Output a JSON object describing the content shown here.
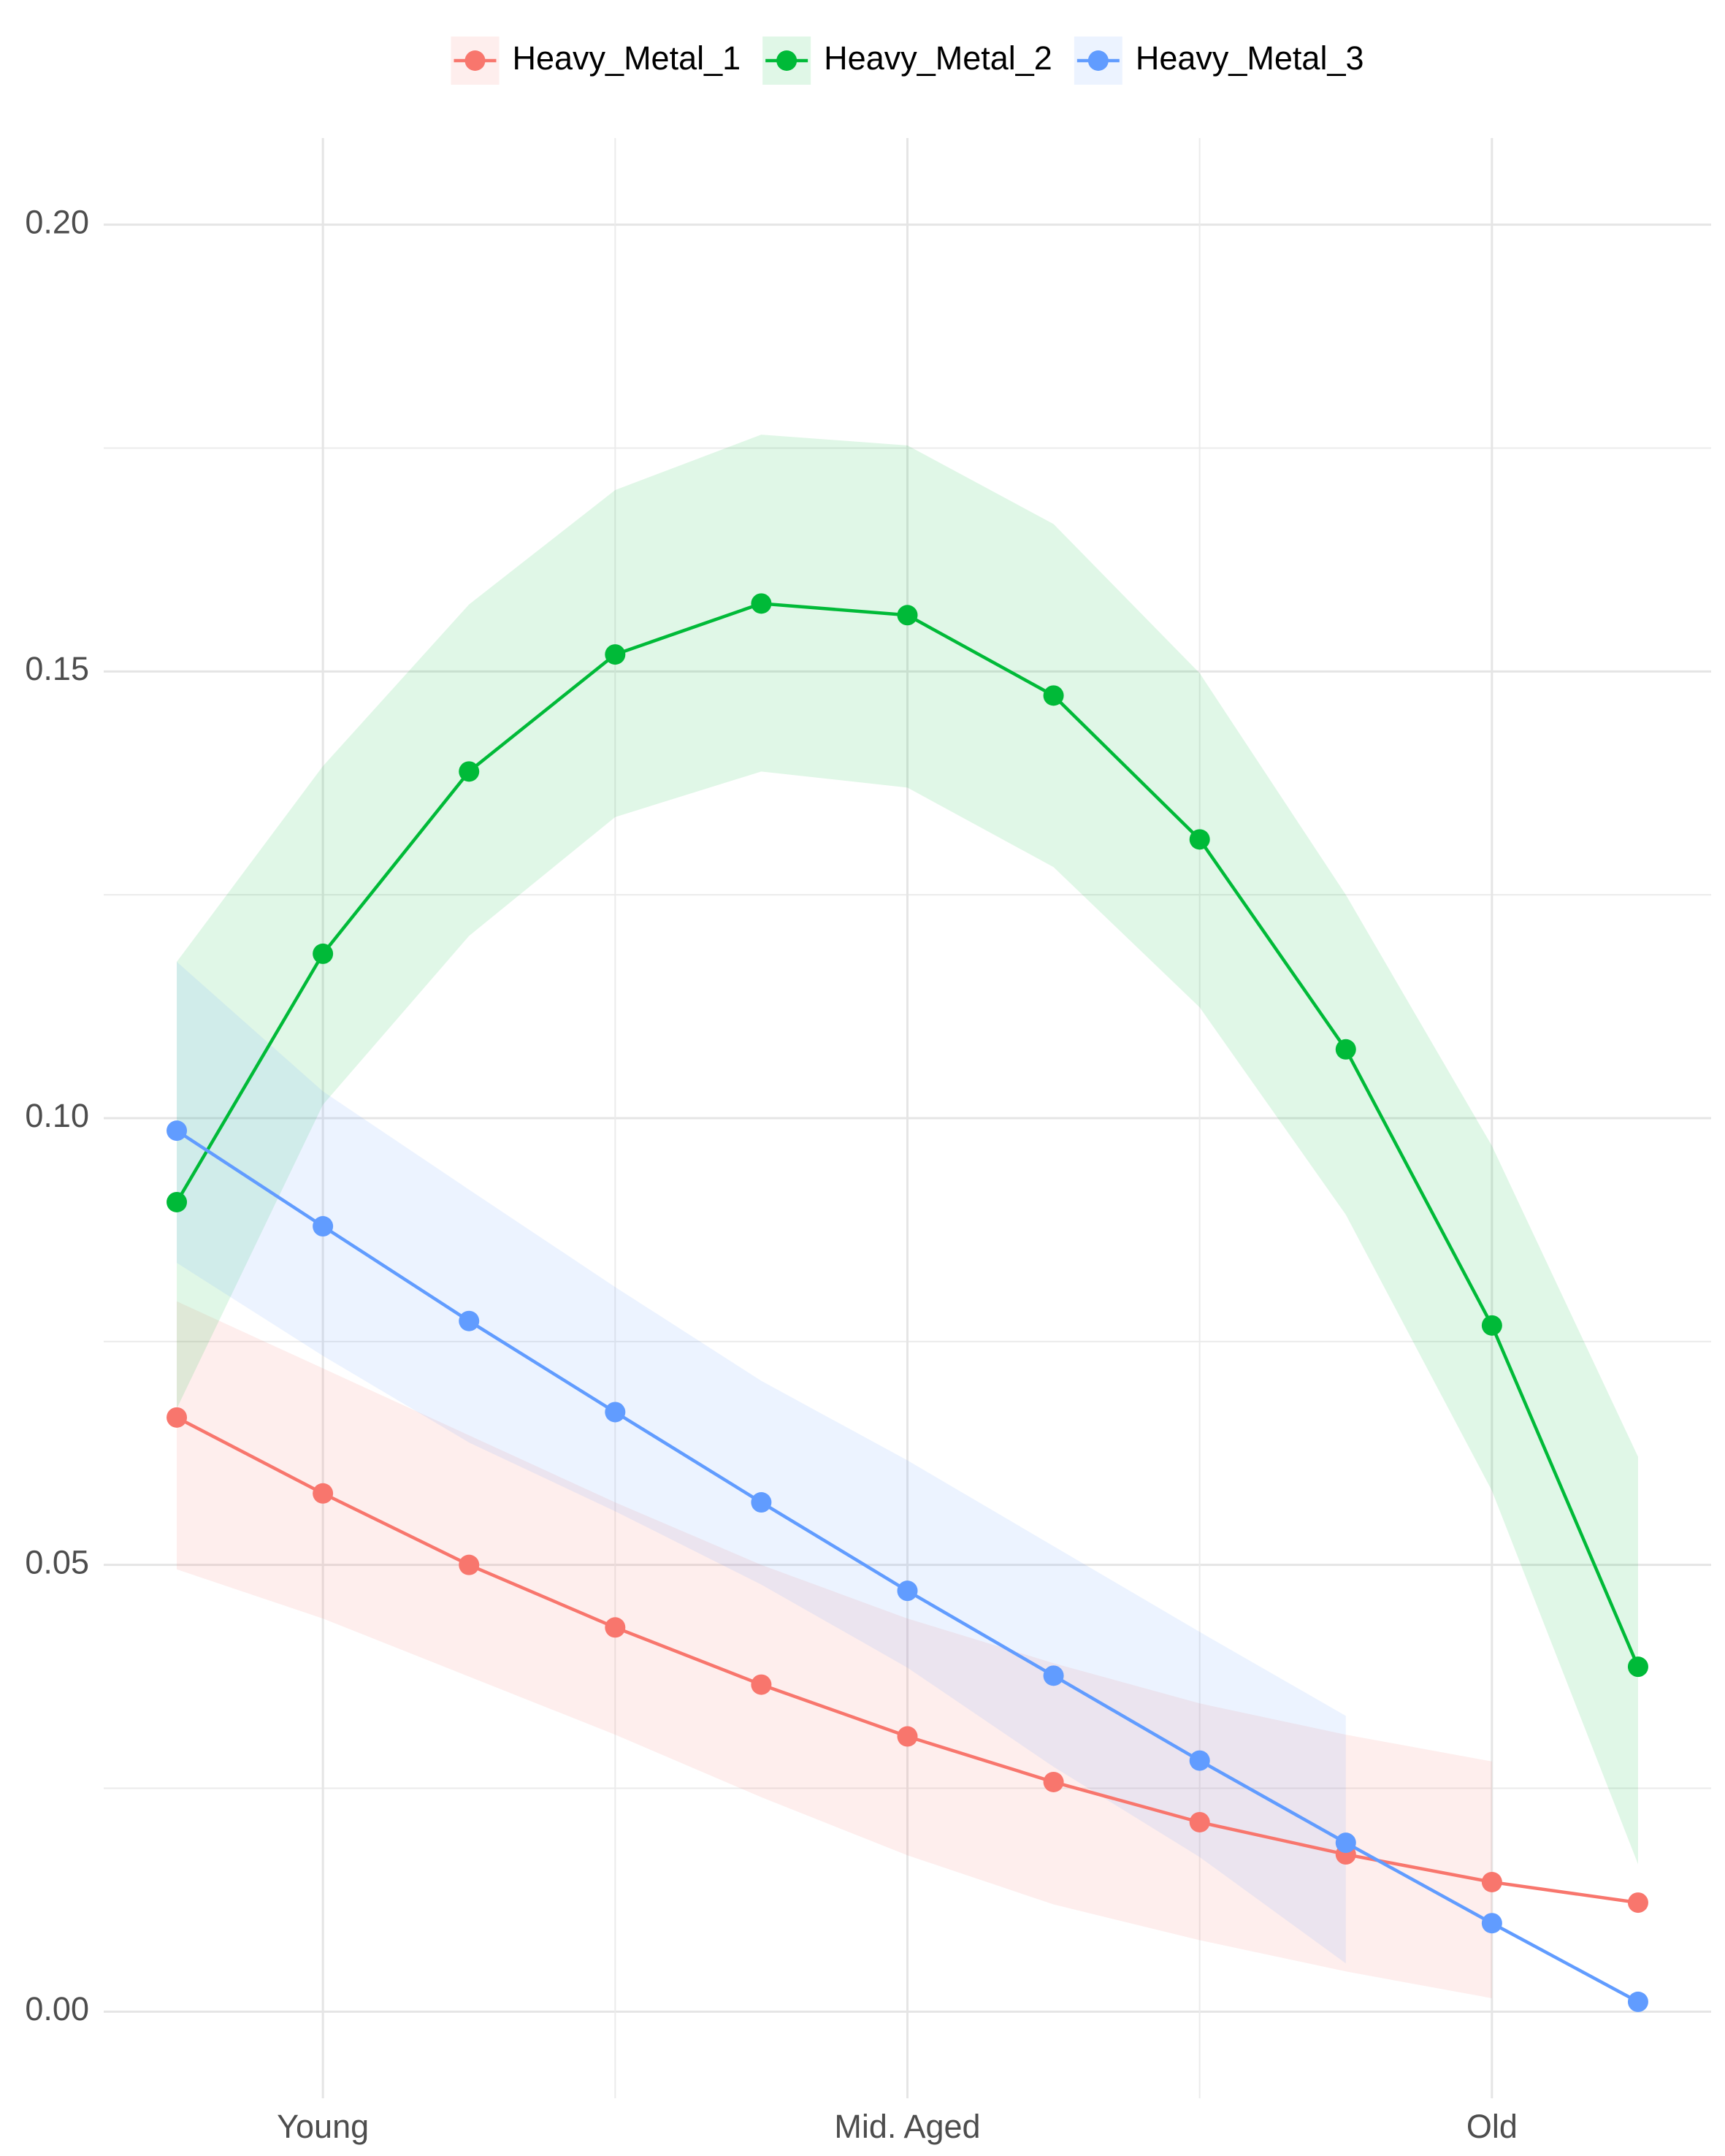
{
  "chart_data": {
    "type": "line",
    "categories": [
      null,
      "Young",
      null,
      null,
      null,
      "Mid. Aged",
      null,
      null,
      null,
      "Old",
      null
    ],
    "series": [
      {
        "name": "Heavy_Metal_1",
        "color": "#F8766D",
        "values": [
          0.0665,
          0.058,
          0.05,
          0.043,
          0.0366,
          0.0308,
          0.0257,
          0.0212,
          0.0176,
          0.0145,
          0.0122
        ],
        "upper": [
          0.0795,
          0.072,
          0.0645,
          0.057,
          0.05,
          0.044,
          0.039,
          0.0345,
          0.031,
          0.028,
          null
        ],
        "lower": [
          0.0495,
          0.044,
          0.0375,
          0.031,
          0.024,
          0.0175,
          0.012,
          0.008,
          0.0045,
          0.0015,
          null
        ]
      },
      {
        "name": "Heavy_Metal_2",
        "color": "#00BA38",
        "values": [
          0.0906,
          0.1184,
          0.1388,
          0.1519,
          0.1576,
          0.1563,
          0.1473,
          0.1312,
          0.1077,
          0.0768,
          0.0386
        ],
        "upper": [
          0.1175,
          0.1394,
          0.1575,
          0.1703,
          0.1765,
          0.1753,
          0.1665,
          0.1498,
          0.125,
          0.0969,
          0.0621
        ],
        "lower": [
          0.0675,
          0.1015,
          0.1204,
          0.1337,
          0.1388,
          0.137,
          0.1281,
          0.1124,
          0.0892,
          0.0583,
          0.0165
        ]
      },
      {
        "name": "Heavy_Metal_3",
        "color": "#619CFF",
        "values": [
          0.0986,
          0.0879,
          0.0773,
          0.0671,
          0.057,
          0.0471,
          0.0376,
          0.0281,
          0.0189,
          0.0099,
          0.0011
        ],
        "upper": [
          0.1175,
          0.103,
          0.092,
          0.0811,
          0.0706,
          0.0617,
          0.0521,
          0.0425,
          0.0331,
          null,
          null
        ],
        "lower": [
          0.0838,
          0.0734,
          0.0637,
          0.056,
          0.0478,
          0.0385,
          0.0274,
          0.0173,
          0.0054,
          null,
          null
        ]
      }
    ],
    "ylim": [
      -0.0097,
      0.2097
    ],
    "yticks": [
      {
        "value": 0,
        "label": "0.00"
      },
      0.05,
      {
        "value": 0.1,
        "label": "0.10"
      },
      0.15,
      {
        "value": 0.2,
        "label": "0.20"
      }
    ],
    "grid": true,
    "legend": "top"
  }
}
